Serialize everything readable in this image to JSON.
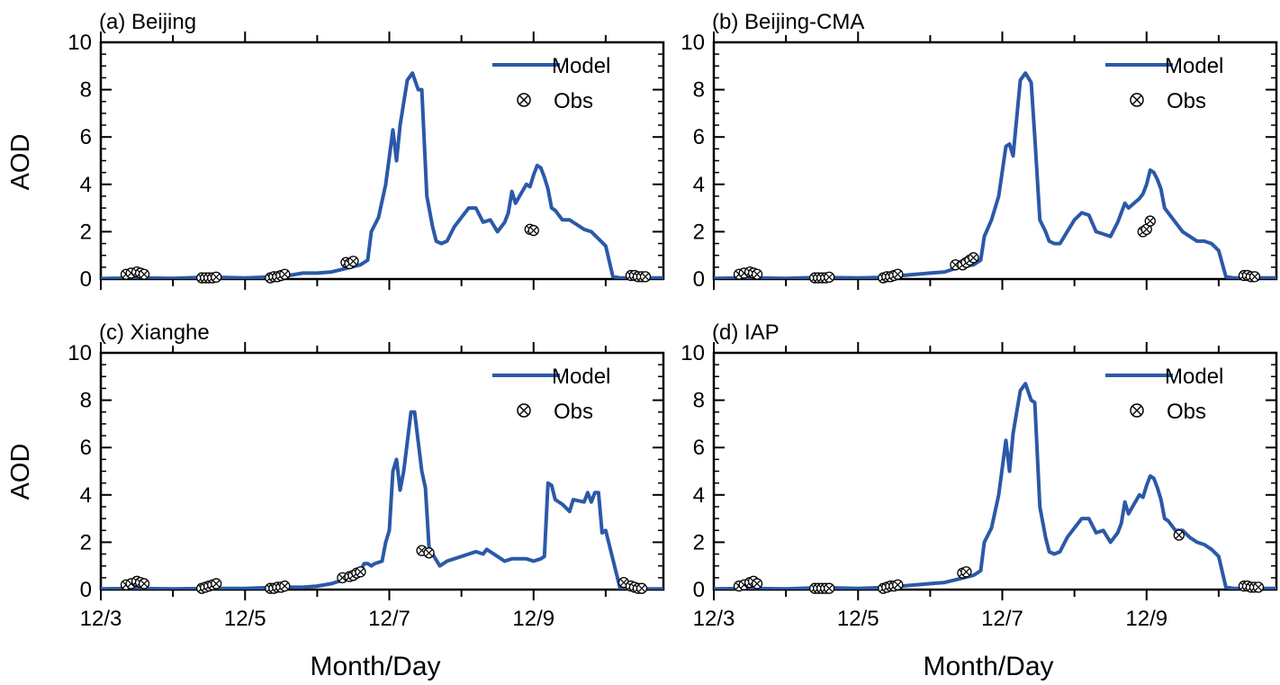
{
  "figure": {
    "ylabel": "AOD",
    "xlabel": "Month/Day"
  },
  "colors": {
    "model": "#2b59a8",
    "obs": "#000000",
    "axis": "#000000"
  },
  "legend": {
    "model": "Model",
    "obs": "Obs",
    "placement": "top-right"
  },
  "chart_data": [
    {
      "type": "line",
      "title": "(a) Beijing",
      "xlabel": "",
      "ylabel": "AOD",
      "xlim": [
        3.0,
        10.8
      ],
      "ylim": [
        0,
        10
      ],
      "yticks": [
        0,
        2,
        4,
        6,
        8,
        10
      ],
      "xticks": [
        {
          "value": 3,
          "label": ""
        },
        {
          "value": 5,
          "label": ""
        },
        {
          "value": 7,
          "label": ""
        },
        {
          "value": 9,
          "label": ""
        }
      ],
      "series": [
        {
          "name": "Model",
          "x": [
            3.0,
            3.5,
            4.0,
            4.5,
            5.0,
            5.3,
            5.6,
            5.8,
            6.0,
            6.2,
            6.4,
            6.6,
            6.7,
            6.75,
            6.85,
            6.95,
            7.05,
            7.1,
            7.15,
            7.25,
            7.32,
            7.4,
            7.45,
            7.52,
            7.6,
            7.65,
            7.72,
            7.8,
            7.9,
            8.0,
            8.1,
            8.2,
            8.3,
            8.4,
            8.5,
            8.6,
            8.65,
            8.7,
            8.75,
            8.9,
            8.95,
            9.0,
            9.05,
            9.1,
            9.15,
            9.2,
            9.25,
            9.3,
            9.4,
            9.5,
            9.6,
            9.7,
            9.8,
            9.9,
            10.0,
            10.1,
            10.2,
            10.3,
            10.5,
            10.8
          ],
          "y": [
            0.02,
            0.05,
            0.03,
            0.08,
            0.05,
            0.08,
            0.15,
            0.25,
            0.25,
            0.3,
            0.45,
            0.6,
            0.8,
            2.0,
            2.6,
            4.0,
            6.3,
            5.0,
            6.5,
            8.4,
            8.7,
            8.0,
            8.0,
            3.5,
            2.2,
            1.6,
            1.5,
            1.6,
            2.2,
            2.6,
            3.0,
            3.0,
            2.4,
            2.5,
            2.0,
            2.4,
            2.8,
            3.7,
            3.2,
            4.0,
            3.9,
            4.4,
            4.8,
            4.7,
            4.3,
            3.8,
            3.0,
            2.9,
            2.5,
            2.5,
            2.3,
            2.1,
            2.0,
            1.7,
            1.4,
            0.1,
            0.05,
            0.05,
            0.05,
            0.05
          ]
        },
        {
          "name": "Obs",
          "x": [
            3.35,
            3.42,
            3.5,
            3.55,
            3.6,
            4.4,
            4.45,
            4.5,
            4.55,
            4.6,
            5.35,
            5.4,
            5.45,
            5.5,
            5.55,
            6.4,
            6.45,
            6.5,
            8.95,
            9.0,
            10.35,
            10.4,
            10.45,
            10.5,
            10.55
          ],
          "y": [
            0.2,
            0.25,
            0.3,
            0.25,
            0.2,
            0.05,
            0.05,
            0.05,
            0.05,
            0.08,
            0.05,
            0.1,
            0.1,
            0.15,
            0.2,
            0.7,
            0.65,
            0.75,
            2.1,
            2.05,
            0.15,
            0.15,
            0.1,
            0.1,
            0.1
          ]
        }
      ]
    },
    {
      "type": "line",
      "title": "(b) Beijing-CMA",
      "xlabel": "",
      "ylabel": "",
      "xlim": [
        3.0,
        10.8
      ],
      "ylim": [
        0,
        10
      ],
      "yticks": [
        0,
        2,
        4,
        6,
        8,
        10
      ],
      "xticks": [
        {
          "value": 3,
          "label": ""
        },
        {
          "value": 5,
          "label": ""
        },
        {
          "value": 7,
          "label": ""
        },
        {
          "value": 9,
          "label": ""
        }
      ],
      "series": [
        {
          "name": "Model",
          "x": [
            3.0,
            3.5,
            4.0,
            4.5,
            5.0,
            5.3,
            5.6,
            5.8,
            6.0,
            6.2,
            6.4,
            6.6,
            6.7,
            6.75,
            6.85,
            6.95,
            7.05,
            7.1,
            7.15,
            7.25,
            7.32,
            7.4,
            7.45,
            7.52,
            7.6,
            7.65,
            7.72,
            7.8,
            7.9,
            8.0,
            8.1,
            8.2,
            8.3,
            8.4,
            8.5,
            8.6,
            8.65,
            8.7,
            8.75,
            8.9,
            8.95,
            9.0,
            9.05,
            9.1,
            9.15,
            9.2,
            9.25,
            9.3,
            9.4,
            9.5,
            9.6,
            9.7,
            9.8,
            9.9,
            10.0,
            10.1,
            10.2,
            10.3,
            10.5,
            10.8
          ],
          "y": [
            0.03,
            0.05,
            0.03,
            0.07,
            0.05,
            0.07,
            0.15,
            0.2,
            0.25,
            0.3,
            0.5,
            0.6,
            0.8,
            1.8,
            2.5,
            3.5,
            5.6,
            5.7,
            5.2,
            8.4,
            8.7,
            8.3,
            6.0,
            2.5,
            2.0,
            1.6,
            1.5,
            1.5,
            2.0,
            2.5,
            2.8,
            2.7,
            2.0,
            1.9,
            1.8,
            2.4,
            2.8,
            3.2,
            3.0,
            3.4,
            3.6,
            4.0,
            4.6,
            4.5,
            4.2,
            3.8,
            3.0,
            2.8,
            2.4,
            2.0,
            1.8,
            1.6,
            1.6,
            1.5,
            1.2,
            0.1,
            0.05,
            0.05,
            0.05,
            0.05
          ]
        },
        {
          "name": "Obs",
          "x": [
            3.35,
            3.42,
            3.5,
            3.55,
            3.6,
            4.4,
            4.45,
            4.5,
            4.55,
            4.6,
            5.35,
            5.4,
            5.45,
            5.5,
            5.55,
            6.35,
            6.45,
            6.5,
            6.55,
            6.6,
            8.95,
            9.0,
            9.05,
            10.35,
            10.4,
            10.45,
            10.5
          ],
          "y": [
            0.2,
            0.25,
            0.3,
            0.25,
            0.2,
            0.05,
            0.05,
            0.05,
            0.05,
            0.08,
            0.05,
            0.1,
            0.1,
            0.15,
            0.2,
            0.6,
            0.6,
            0.7,
            0.8,
            0.9,
            2.0,
            2.1,
            2.45,
            0.15,
            0.15,
            0.1,
            0.1
          ]
        }
      ]
    },
    {
      "type": "line",
      "title": "(c) Xianghe",
      "xlabel": "Month/Day",
      "ylabel": "AOD",
      "xlim": [
        3.0,
        10.8
      ],
      "ylim": [
        0,
        10
      ],
      "yticks": [
        0,
        2,
        4,
        6,
        8,
        10
      ],
      "xticks": [
        {
          "value": 3,
          "label": "12/3"
        },
        {
          "value": 5,
          "label": "12/5"
        },
        {
          "value": 7,
          "label": "12/7"
        },
        {
          "value": 9,
          "label": "12/9"
        }
      ],
      "series": [
        {
          "name": "Model",
          "x": [
            3.0,
            3.5,
            4.0,
            4.5,
            5.0,
            5.3,
            5.6,
            5.8,
            6.0,
            6.2,
            6.4,
            6.5,
            6.6,
            6.65,
            6.7,
            6.75,
            6.8,
            6.9,
            6.95,
            7.0,
            7.05,
            7.1,
            7.15,
            7.2,
            7.3,
            7.35,
            7.45,
            7.5,
            7.55,
            7.6,
            7.7,
            7.8,
            8.0,
            8.2,
            8.3,
            8.35,
            8.4,
            8.6,
            8.7,
            8.8,
            8.9,
            9.0,
            9.1,
            9.15,
            9.2,
            9.25,
            9.3,
            9.4,
            9.5,
            9.55,
            9.7,
            9.75,
            9.8,
            9.85,
            9.9,
            9.95,
            10.0,
            10.2,
            10.3,
            10.5,
            10.8
          ],
          "y": [
            0.03,
            0.05,
            0.03,
            0.05,
            0.05,
            0.08,
            0.1,
            0.1,
            0.15,
            0.25,
            0.45,
            0.6,
            0.8,
            1.1,
            1.1,
            1.0,
            1.1,
            1.2,
            2.0,
            2.5,
            5.0,
            5.5,
            4.2,
            5.0,
            7.5,
            7.5,
            5.0,
            4.3,
            1.8,
            1.5,
            1.0,
            1.2,
            1.4,
            1.6,
            1.5,
            1.7,
            1.6,
            1.2,
            1.3,
            1.3,
            1.3,
            1.2,
            1.3,
            1.4,
            4.5,
            4.4,
            3.8,
            3.6,
            3.3,
            3.8,
            3.7,
            4.1,
            3.7,
            4.1,
            4.1,
            2.4,
            2.5,
            0.05,
            0.03,
            0.03,
            0.03
          ]
        },
        {
          "name": "Obs",
          "x": [
            3.35,
            3.42,
            3.5,
            3.55,
            3.6,
            4.4,
            4.45,
            4.5,
            4.55,
            4.6,
            5.35,
            5.4,
            5.45,
            5.5,
            5.55,
            6.35,
            6.45,
            6.5,
            6.55,
            6.6,
            7.45,
            7.55,
            10.25,
            10.35,
            10.4,
            10.45,
            10.5
          ],
          "y": [
            0.2,
            0.25,
            0.35,
            0.3,
            0.25,
            0.05,
            0.1,
            0.15,
            0.2,
            0.25,
            0.05,
            0.05,
            0.1,
            0.1,
            0.15,
            0.5,
            0.55,
            0.6,
            0.7,
            0.75,
            1.65,
            1.55,
            0.3,
            0.15,
            0.1,
            0.05,
            0.05
          ]
        }
      ]
    },
    {
      "type": "line",
      "title": "(d) IAP",
      "xlabel": "Month/Day",
      "ylabel": "",
      "xlim": [
        3.0,
        10.8
      ],
      "ylim": [
        0,
        10
      ],
      "yticks": [
        0,
        2,
        4,
        6,
        8,
        10
      ],
      "xticks": [
        {
          "value": 3,
          "label": "12/3"
        },
        {
          "value": 5,
          "label": "12/5"
        },
        {
          "value": 7,
          "label": "12/7"
        },
        {
          "value": 9,
          "label": "12/9"
        }
      ],
      "series": [
        {
          "name": "Model",
          "x": [
            3.0,
            3.5,
            4.0,
            4.5,
            5.0,
            5.3,
            5.6,
            5.8,
            6.0,
            6.2,
            6.4,
            6.6,
            6.7,
            6.75,
            6.85,
            6.95,
            7.05,
            7.1,
            7.15,
            7.25,
            7.32,
            7.4,
            7.45,
            7.52,
            7.6,
            7.65,
            7.72,
            7.8,
            7.9,
            8.0,
            8.1,
            8.2,
            8.3,
            8.4,
            8.5,
            8.6,
            8.65,
            8.7,
            8.75,
            8.9,
            8.95,
            9.0,
            9.05,
            9.1,
            9.15,
            9.2,
            9.25,
            9.3,
            9.4,
            9.5,
            9.6,
            9.7,
            9.8,
            9.9,
            10.0,
            10.1,
            10.2,
            10.3,
            10.5,
            10.8
          ],
          "y": [
            0.03,
            0.05,
            0.03,
            0.08,
            0.05,
            0.08,
            0.15,
            0.2,
            0.25,
            0.3,
            0.45,
            0.6,
            0.8,
            2.0,
            2.6,
            4.0,
            6.3,
            5.0,
            6.6,
            8.4,
            8.7,
            8.0,
            7.9,
            3.5,
            2.2,
            1.6,
            1.5,
            1.6,
            2.2,
            2.6,
            3.0,
            3.0,
            2.4,
            2.5,
            2.0,
            2.4,
            2.8,
            3.7,
            3.2,
            4.0,
            3.9,
            4.4,
            4.8,
            4.7,
            4.3,
            3.8,
            3.0,
            2.9,
            2.5,
            2.5,
            2.2,
            2.0,
            1.9,
            1.7,
            1.4,
            0.1,
            0.05,
            0.05,
            0.05,
            0.05
          ]
        },
        {
          "name": "Obs",
          "x": [
            3.35,
            3.42,
            3.5,
            3.55,
            3.6,
            4.4,
            4.45,
            4.5,
            4.55,
            4.6,
            5.35,
            5.4,
            5.45,
            5.5,
            5.55,
            6.45,
            6.5,
            9.45,
            10.35,
            10.4,
            10.45,
            10.5,
            10.55
          ],
          "y": [
            0.15,
            0.2,
            0.3,
            0.35,
            0.25,
            0.05,
            0.05,
            0.05,
            0.05,
            0.05,
            0.05,
            0.1,
            0.15,
            0.15,
            0.2,
            0.7,
            0.75,
            2.3,
            0.15,
            0.15,
            0.1,
            0.1,
            0.1
          ]
        }
      ]
    }
  ]
}
